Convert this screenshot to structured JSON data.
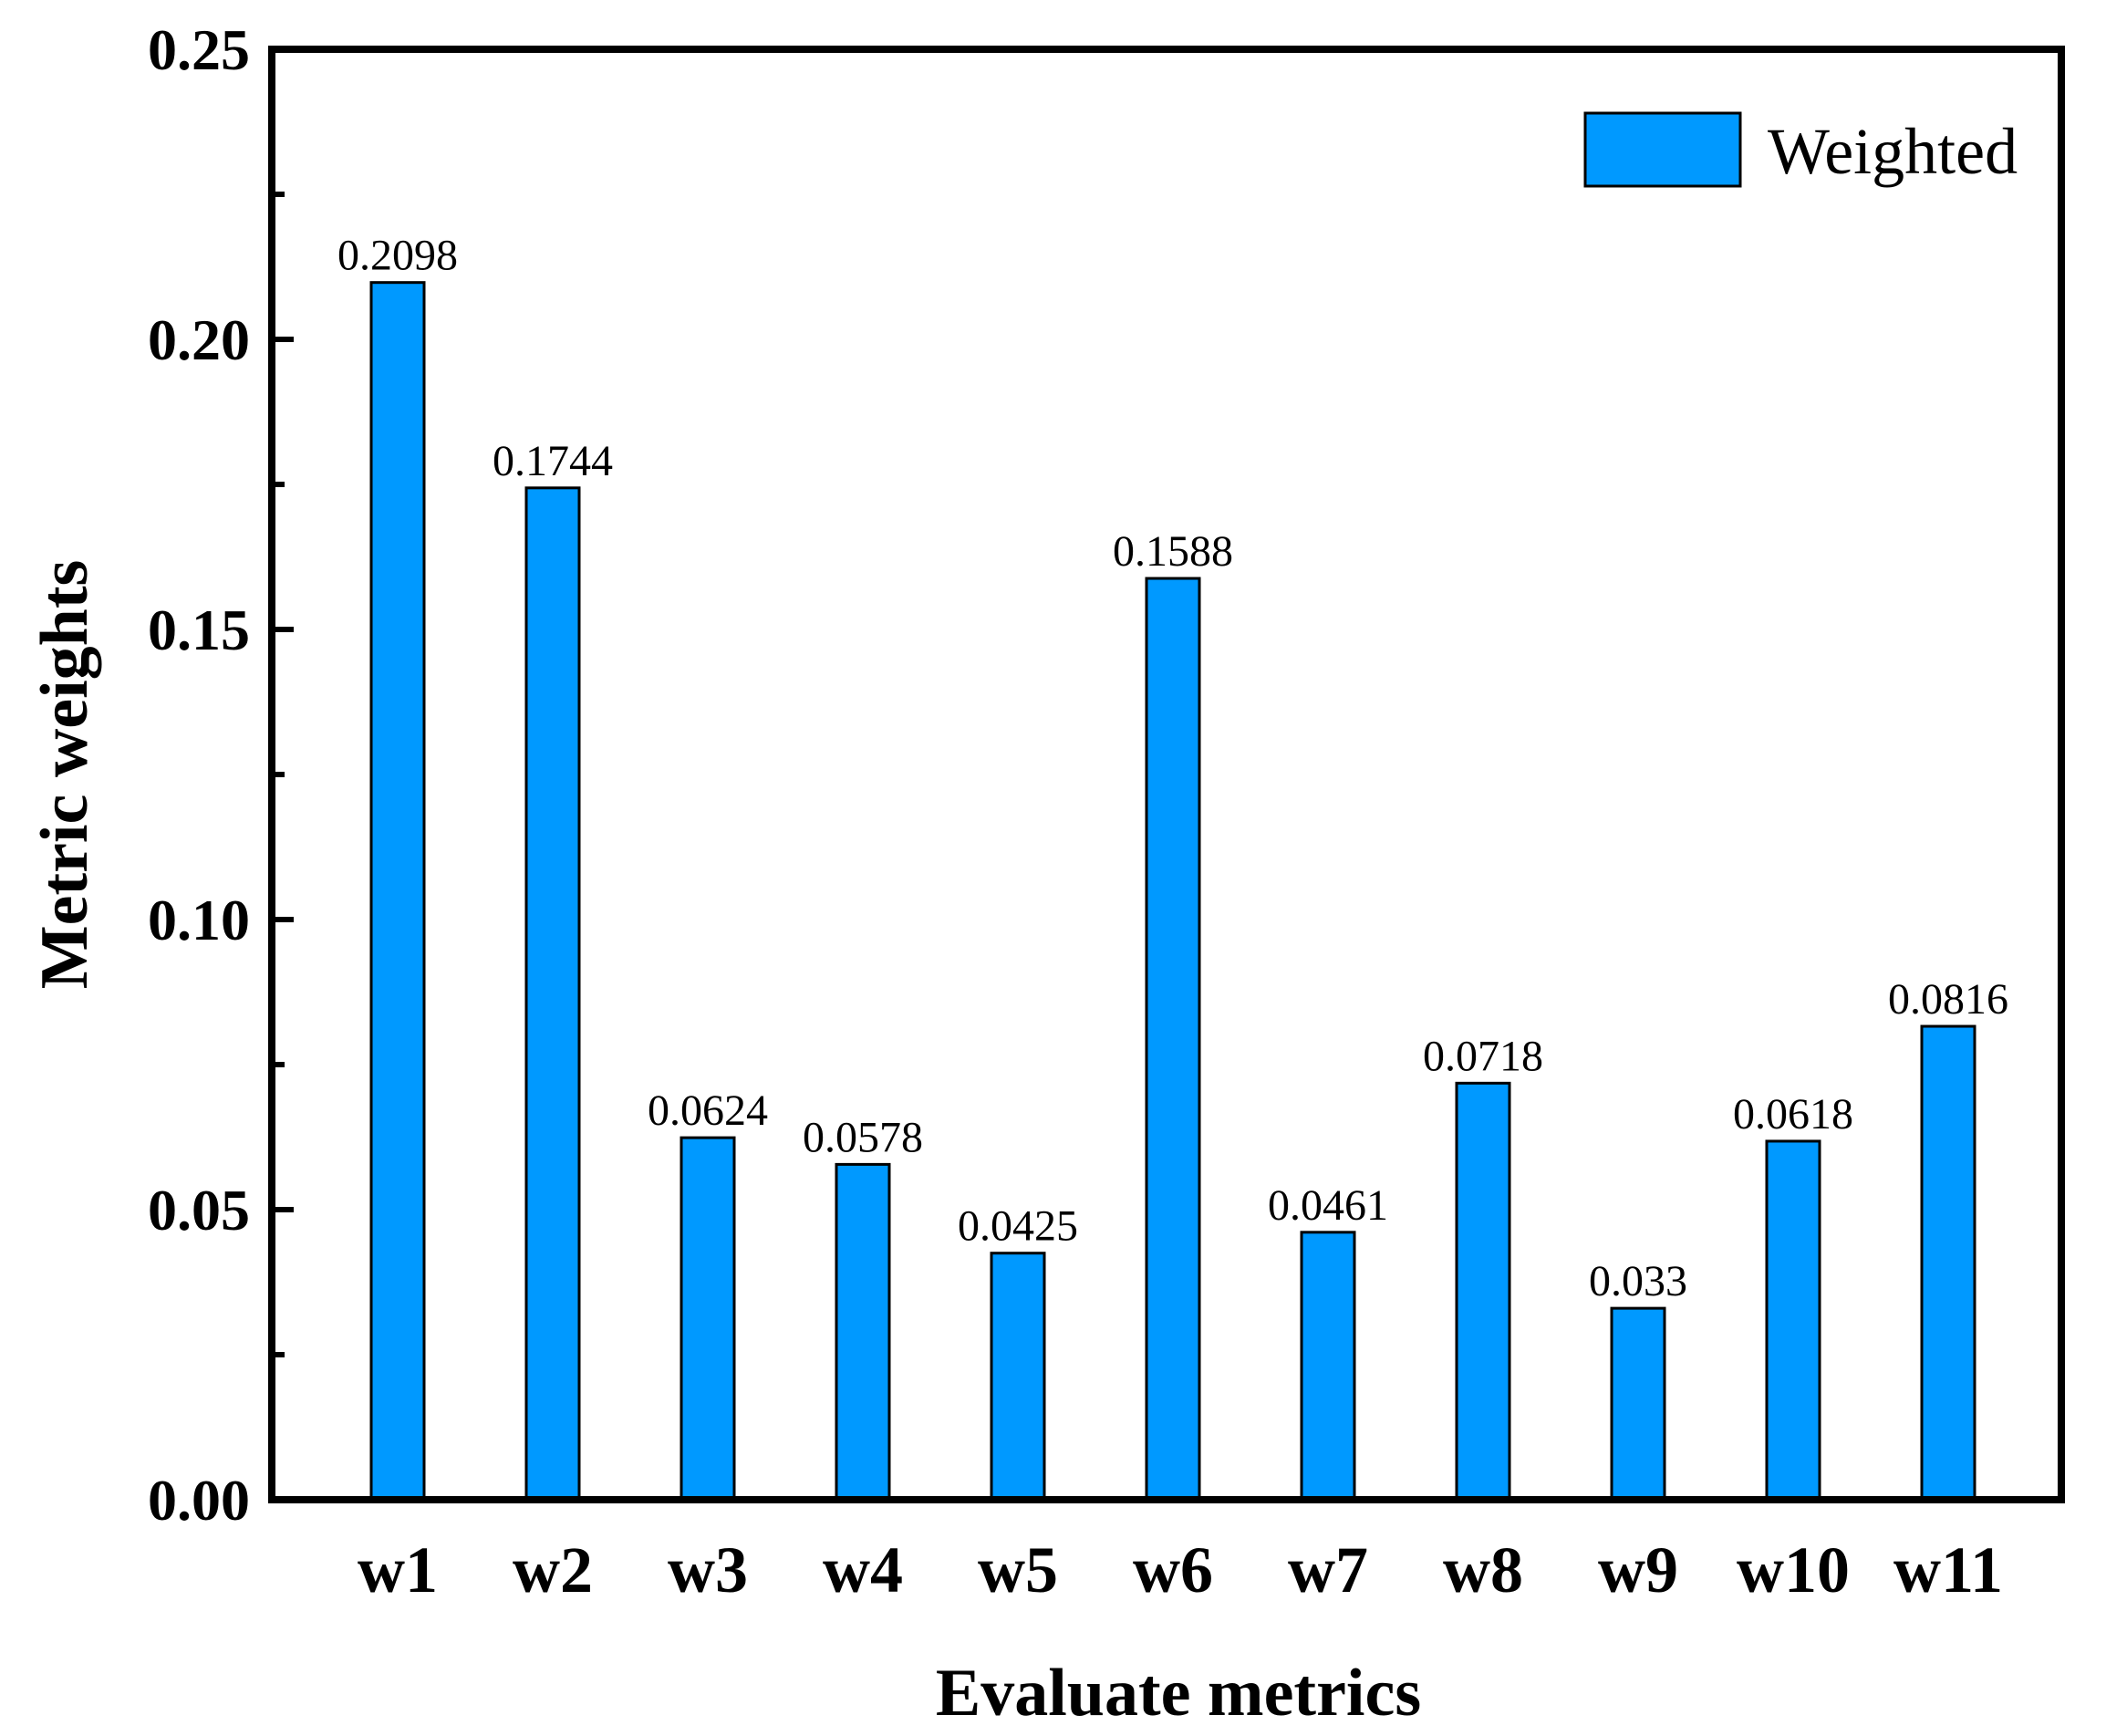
{
  "chart_data": {
    "type": "bar",
    "title": "",
    "xlabel": "Evaluate metrics",
    "ylabel": "Metric weights",
    "categories": [
      "w1",
      "w2",
      "w3",
      "w4",
      "w5",
      "w6",
      "w7",
      "w8",
      "w9",
      "w10",
      "w11"
    ],
    "series": [
      {
        "name": "Weighted",
        "values": [
          0.2098,
          0.1744,
          0.0624,
          0.0578,
          0.0425,
          0.1588,
          0.0461,
          0.0718,
          0.033,
          0.0618,
          0.0816
        ],
        "value_labels": [
          "0.2098",
          "0.1744",
          "0.0624",
          "0.0578",
          "0.0425",
          "0.1588",
          "0.0461",
          "0.0718",
          "0.033",
          "0.0618",
          "0.0816"
        ],
        "color": "#0099ff"
      }
    ],
    "ylim": [
      0,
      0.25
    ],
    "yticks": [
      0.0,
      0.05,
      0.1,
      0.15,
      0.2,
      0.25
    ],
    "ytick_labels": [
      "0.00",
      "0.05",
      "0.10",
      "0.15",
      "0.20",
      "0.25"
    ],
    "minor_ticks": true,
    "grid": false,
    "legend": {
      "position": "top-right",
      "entries": [
        "Weighted"
      ]
    }
  }
}
